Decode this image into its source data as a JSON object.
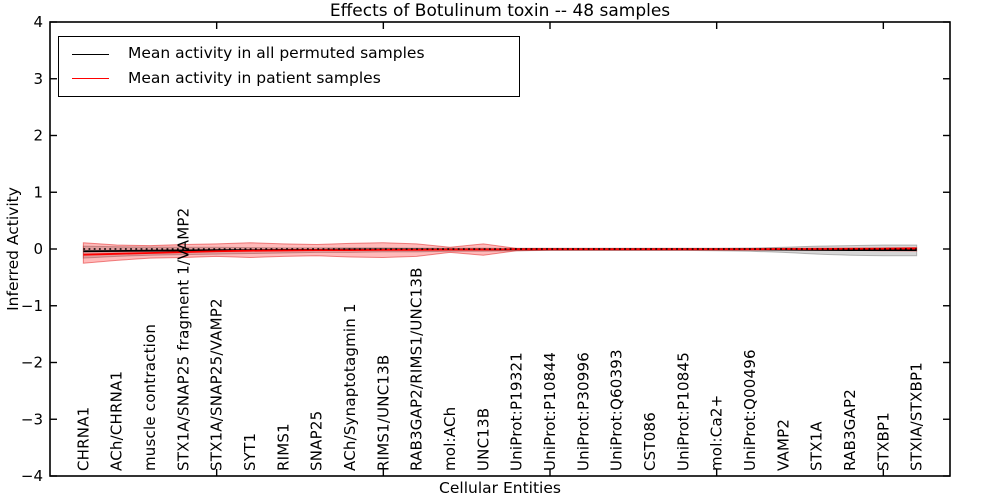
{
  "title": "Effects of Botulinum toxin -- 48 samples",
  "axes": {
    "ylabel": "Inferred Activity",
    "xlabel": "Cellular Entities",
    "ylim": [
      -4,
      4
    ],
    "xlim": [
      0,
      27
    ],
    "ytick_values": [
      -4,
      -3,
      -2,
      -1,
      0,
      1,
      2,
      3,
      4
    ],
    "ytick_labels": [
      "−4",
      "−3",
      "−2",
      "−1",
      "0",
      "1",
      "2",
      "3",
      "4"
    ],
    "x_numeric_ticks": [
      5,
      10,
      15,
      20,
      25
    ]
  },
  "legend": {
    "items": [
      {
        "label": "Mean activity in all permuted samples",
        "color": "#000000"
      },
      {
        "label": "Mean activity in patient samples",
        "color": "#ff0000"
      }
    ]
  },
  "chart_data": {
    "type": "line",
    "title": "Effects of Botulinum toxin -- 48 samples",
    "xlabel": "Cellular Entities",
    "ylabel": "Inferred Activity",
    "ylim": [
      -4,
      4
    ],
    "grid": false,
    "legend_position": "upper left",
    "x": [
      1,
      2,
      3,
      4,
      5,
      6,
      7,
      8,
      9,
      10,
      11,
      12,
      13,
      14,
      15,
      16,
      17,
      18,
      19,
      20,
      21,
      22,
      23,
      24,
      25,
      26
    ],
    "categories": [
      "CHRNA1",
      "ACh/CHRNA1",
      "muscle contraction",
      "STX1A/SNAP25 fragment 1/VAMP2",
      "STX1A/SNAP25/VAMP2",
      "SYT1",
      "RIMS1",
      "SNAP25",
      "ACh/Synaptotagmin 1",
      "RIMS1/UNC13B",
      "RAB3GAP2/RIMS1/UNC13B",
      "mol:ACh",
      "UNC13B",
      "UniProt:P19321",
      "UniProt:P10844",
      "UniProt:P30996",
      "UniProt:Q60393",
      "CST086",
      "UniProt:P10845",
      "mol:Ca2+",
      "UniProt:Q00496",
      "VAMP2",
      "STX1A",
      "RAB3GAP2",
      "STXBP1",
      "STXIA/STXBP1"
    ],
    "series": [
      {
        "name": "Mean activity in all permuted samples",
        "color": "#000000",
        "style": "solid",
        "values": [
          -0.04,
          -0.035,
          -0.03,
          -0.025,
          -0.02,
          -0.02,
          -0.015,
          -0.015,
          -0.01,
          -0.01,
          -0.01,
          -0.01,
          -0.01,
          -0.005,
          -0.005,
          -0.005,
          -0.005,
          -0.005,
          -0.005,
          -0.005,
          -0.005,
          -0.01,
          -0.015,
          -0.02,
          -0.02,
          -0.02
        ]
      },
      {
        "name": "Mean activity in patient samples",
        "color": "#ff0000",
        "style": "solid",
        "values": [
          -0.1,
          -0.085,
          -0.07,
          -0.055,
          -0.04,
          -0.03,
          -0.025,
          -0.02,
          -0.02,
          -0.015,
          -0.015,
          -0.01,
          -0.01,
          -0.005,
          -0.005,
          -0.005,
          -0.005,
          -0.005,
          -0.005,
          -0.005,
          -0.005,
          0,
          0,
          0.005,
          0.005,
          0.01
        ]
      },
      {
        "name": "zero reference",
        "color": "#000000",
        "style": "dotted",
        "value": 0
      }
    ],
    "bands": [
      {
        "name": "permuted samples range",
        "fill": "rgba(0,0,0,0.16)",
        "edge": "rgba(0,0,0,0.25)",
        "upper": [
          0.05,
          0.04,
          0.035,
          0.03,
          0.03,
          0.025,
          0.02,
          0.02,
          0.02,
          0.02,
          0.015,
          0.015,
          0.015,
          0.01,
          0.01,
          0.01,
          0.01,
          0.01,
          0.01,
          0.01,
          0.015,
          0.03,
          0.05,
          0.06,
          0.07,
          0.07
        ],
        "lower": [
          -0.16,
          -0.13,
          -0.11,
          -0.1,
          -0.09,
          -0.08,
          -0.07,
          -0.06,
          -0.06,
          -0.05,
          -0.05,
          -0.04,
          -0.04,
          -0.03,
          -0.025,
          -0.025,
          -0.025,
          -0.025,
          -0.025,
          -0.03,
          -0.04,
          -0.06,
          -0.09,
          -0.11,
          -0.12,
          -0.12
        ]
      },
      {
        "name": "patient samples range",
        "fill": "rgba(255,0,0,0.27)",
        "edge": "rgba(220,0,0,0.45)",
        "upper": [
          0.11,
          0.07,
          0.06,
          0.08,
          0.09,
          0.11,
          0.09,
          0.08,
          0.1,
          0.11,
          0.09,
          0.03,
          0.09,
          0.01,
          0.01,
          0.01,
          0.01,
          0.01,
          0.01,
          0.01,
          0.01,
          0.01,
          0.015,
          0.015,
          0.02,
          0.025
        ],
        "lower": [
          -0.25,
          -0.2,
          -0.16,
          -0.15,
          -0.13,
          -0.15,
          -0.13,
          -0.12,
          -0.14,
          -0.15,
          -0.13,
          -0.06,
          -0.11,
          -0.03,
          -0.02,
          -0.02,
          -0.02,
          -0.02,
          -0.02,
          -0.02,
          -0.02,
          -0.02,
          -0.025,
          -0.025,
          -0.03,
          -0.035
        ]
      }
    ]
  }
}
